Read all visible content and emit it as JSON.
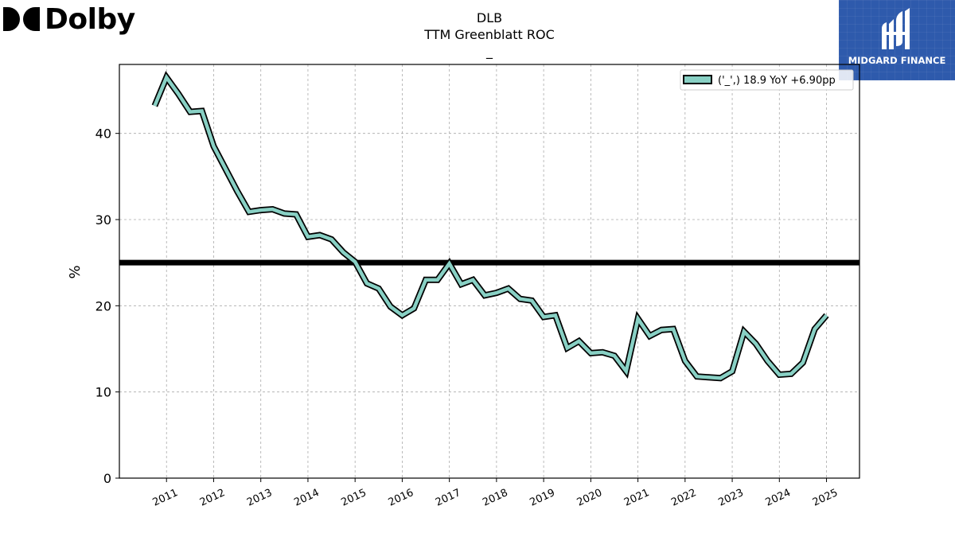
{
  "brand": {
    "name": "Dolby",
    "partner": "MIDGARD FINANCE"
  },
  "chart_data": {
    "type": "line",
    "title": "DLB",
    "subtitle": "TTM Greenblatt ROC",
    "subtitle2": "_",
    "ylabel": "%",
    "xlabel": "",
    "ylim": [
      0,
      48
    ],
    "yticks": [
      "0",
      "10",
      "20",
      "30",
      "40"
    ],
    "xtick_labels": [
      "2011",
      "2012",
      "2013",
      "2014",
      "2015",
      "2016",
      "2017",
      "2018",
      "2019",
      "2020",
      "2021",
      "2022",
      "2023",
      "2024",
      "2025"
    ],
    "grid": true,
    "legend_position": "top-right",
    "reference_line": 25,
    "line_color": "#88d0c4",
    "outline_color": "#000000",
    "series": [
      {
        "name": "('_',) 18.9 YoY +6.90pp",
        "x": [
          2010.75,
          2011.0,
          2011.25,
          2011.5,
          2011.75,
          2012.0,
          2012.25,
          2012.5,
          2012.75,
          2013.0,
          2013.25,
          2013.5,
          2013.75,
          2014.0,
          2014.25,
          2014.5,
          2014.75,
          2015.0,
          2015.25,
          2015.5,
          2015.75,
          2016.0,
          2016.25,
          2016.5,
          2016.75,
          2017.0,
          2017.25,
          2017.5,
          2017.75,
          2018.0,
          2018.25,
          2018.5,
          2018.75,
          2019.0,
          2019.25,
          2019.5,
          2019.75,
          2020.0,
          2020.25,
          2020.5,
          2020.75,
          2021.0,
          2021.25,
          2021.5,
          2021.75,
          2022.0,
          2022.25,
          2022.5,
          2022.75,
          2023.0,
          2023.25,
          2023.5,
          2023.75,
          2024.0,
          2024.25,
          2024.5,
          2024.75,
          2025.0
        ],
        "values": [
          43.2,
          46.5,
          44.6,
          42.5,
          42.6,
          38.5,
          35.9,
          33.3,
          30.9,
          31.1,
          31.2,
          30.7,
          30.6,
          28.0,
          28.2,
          27.7,
          26.2,
          25.1,
          22.6,
          22.0,
          19.9,
          18.9,
          19.7,
          23.0,
          23.0,
          24.9,
          22.5,
          23.0,
          21.2,
          21.5,
          22.0,
          20.8,
          20.6,
          18.7,
          18.9,
          15.1,
          15.9,
          14.5,
          14.6,
          14.2,
          12.4,
          18.5,
          16.5,
          17.2,
          17.3,
          13.6,
          11.8,
          11.7,
          11.6,
          12.4,
          17.0,
          15.6,
          13.6,
          12.0,
          12.1,
          13.4,
          17.3,
          18.9
        ]
      }
    ]
  }
}
